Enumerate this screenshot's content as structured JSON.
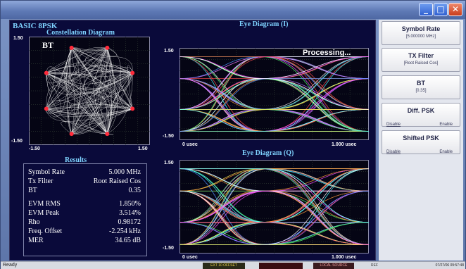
{
  "window": {
    "title": ""
  },
  "main": {
    "heading": "BASIC 8PSK",
    "constellation": {
      "title": "Constellation Diagram",
      "overlay": "BT",
      "y_top": "1.50",
      "y_bottom": "-1.50",
      "x_left": "-1.50",
      "x_right": "1.50",
      "trace_color": "#f3f3f3",
      "point_color": "#ff2a3a"
    },
    "eye_i": {
      "title": "Eye Diagram (I)",
      "status": "Processing...",
      "y_top": "1.50",
      "y_bottom": "-1.50",
      "x_left": "0 usec",
      "x_right": "1.000 usec"
    },
    "eye_q": {
      "title": "Eye Diagram (Q)",
      "y_top": "1.50",
      "y_bottom": "-1.50",
      "x_left": "0 usec",
      "x_right": "1.000 usec"
    },
    "trace_colors": [
      "#ff4d4d",
      "#4dff6a",
      "#4d8dff",
      "#ffe94d",
      "#ff4dff",
      "#4dffff",
      "#ffffff",
      "#ff9a3d",
      "#b06bff"
    ]
  },
  "results": {
    "title": "Results",
    "rows": [
      {
        "label": "Symbol Rate",
        "value": "5.000 MHz"
      },
      {
        "label": "Tx Filter",
        "value": "Root Raised Cos"
      },
      {
        "label": "BT",
        "value": "0.35"
      },
      {
        "label": "EVM RMS",
        "value": "1.850%"
      },
      {
        "label": "EVM Peak",
        "value": "3.514%"
      },
      {
        "label": "Rho",
        "value": "0.98172"
      },
      {
        "label": "Freq. Offset",
        "value": "-2.254 kHz"
      },
      {
        "label": "MER",
        "value": "34.65 dB"
      }
    ]
  },
  "sidebar": {
    "symbol_rate": {
      "label": "Symbol Rate",
      "value": "[5.000000 MHz]"
    },
    "tx_filter": {
      "label": "TX Filter",
      "value": "[Root Raised Cos]"
    },
    "bt": {
      "label": "BT",
      "value": "[0.35]"
    },
    "diff_psk": {
      "label": "Diff. PSK",
      "opt_disable": "Disable",
      "opt_enable": "Enable"
    },
    "shifted_psk": {
      "label": "Shifted PSK",
      "opt_disable": "Disable",
      "opt_enable": "Enable"
    }
  },
  "statusbar": {
    "ready": "Ready",
    "seg1": "EXT 10 OFFSET",
    "seg2": "",
    "seg3": "LOCAL SOURCE",
    "seg4": "REF",
    "datetime": "07/27/06 09:57:48"
  },
  "colors": {
    "title_cyan": "#7fd3ff",
    "grid": "#3c4c3c",
    "plot_border": "#8a8aa8"
  }
}
